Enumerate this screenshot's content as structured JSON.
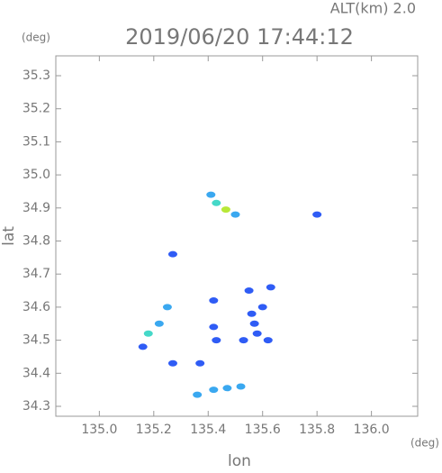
{
  "chart_data": {
    "type": "scatter",
    "title": "2019/06/20 17:44:12",
    "subtitle": "ALT(km) 2.0",
    "x_label": "lon",
    "y_label": "lat",
    "x_unit": "(deg)",
    "y_unit": "(deg)",
    "xlim": [
      134.84,
      136.17
    ],
    "xticks": [
      {
        "value": 135.0,
        "label": "135.0"
      },
      135.2,
      135.4,
      135.6,
      135.8,
      {
        "value": 136.0,
        "label": "136.0"
      }
    ],
    "ylim": [
      34.27,
      35.36
    ],
    "yticks": [
      {
        "value": 34.3,
        "label": "34.3"
      },
      34.4,
      34.5,
      34.6,
      34.7,
      34.8,
      34.9,
      {
        "value": 35.0,
        "label": "35.0"
      },
      35.1,
      35.2,
      35.3
    ],
    "grid": false,
    "series": [
      {
        "color": "#2f5cf5",
        "x": [
          135.8,
          135.27,
          135.16,
          135.27,
          135.37,
          135.42,
          135.43,
          135.42,
          135.55,
          135.57,
          135.53,
          135.58,
          135.6,
          135.63,
          135.62,
          135.56
        ],
        "values": [
          34.88,
          34.76,
          34.48,
          34.43,
          34.43,
          34.54,
          34.5,
          34.62,
          34.65,
          34.55,
          34.5,
          34.52,
          34.6,
          34.66,
          34.5,
          34.58
        ]
      },
      {
        "color": "#3aa8f0",
        "x": [
          135.41,
          135.5,
          135.25,
          135.22,
          135.42,
          135.47,
          135.52,
          135.36
        ],
        "values": [
          34.94,
          34.88,
          34.6,
          34.55,
          34.35,
          34.355,
          34.36,
          34.335
        ]
      },
      {
        "color": "#45d8c8",
        "x": [
          135.43,
          135.18
        ],
        "values": [
          34.915,
          34.52
        ]
      },
      {
        "color": "#b8e838",
        "x": [
          135.465
        ],
        "values": [
          34.895
        ]
      }
    ]
  }
}
